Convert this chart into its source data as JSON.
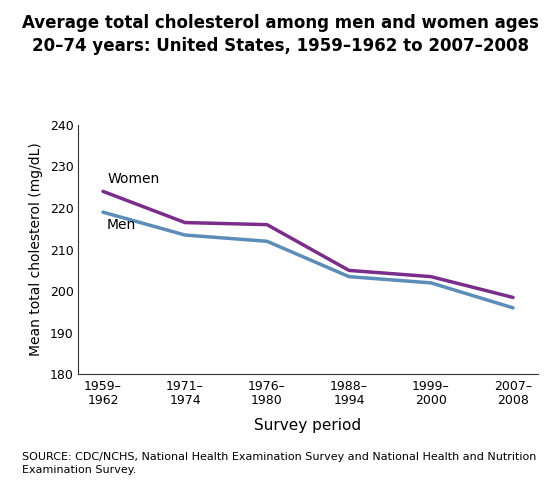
{
  "title": "Average total cholesterol among men and women ages\n20–74 years: United States, 1959–1962 to 2007–2008",
  "x_labels": [
    "1959–\n1962",
    "1971–\n1974",
    "1976–\n1980",
    "1988–\n1994",
    "1999–\n2000",
    "2007–\n2008"
  ],
  "x_positions": [
    0,
    1,
    2,
    3,
    4,
    5
  ],
  "women_values": [
    224.0,
    216.5,
    216.0,
    205.0,
    203.5,
    198.5
  ],
  "men_values": [
    219.0,
    213.5,
    212.0,
    203.5,
    202.0,
    196.0
  ],
  "women_color": "#7B2D8B",
  "men_color": "#5B8DB8",
  "ylim": [
    180,
    240
  ],
  "yticks": [
    180,
    190,
    200,
    210,
    220,
    230,
    240
  ],
  "ylabel": "Mean total cholesterol (mg/dL)",
  "xlabel": "Survey period",
  "women_label": "Women",
  "men_label": "Men",
  "source_text": "SOURCE: CDC/NCHS, National Health Examination Survey and National Health and Nutrition\nExamination Survey.",
  "line_width": 2.5,
  "bg_color": "#ffffff",
  "title_fontsize": 12,
  "axis_label_fontsize": 10,
  "tick_fontsize": 9,
  "source_fontsize": 8
}
